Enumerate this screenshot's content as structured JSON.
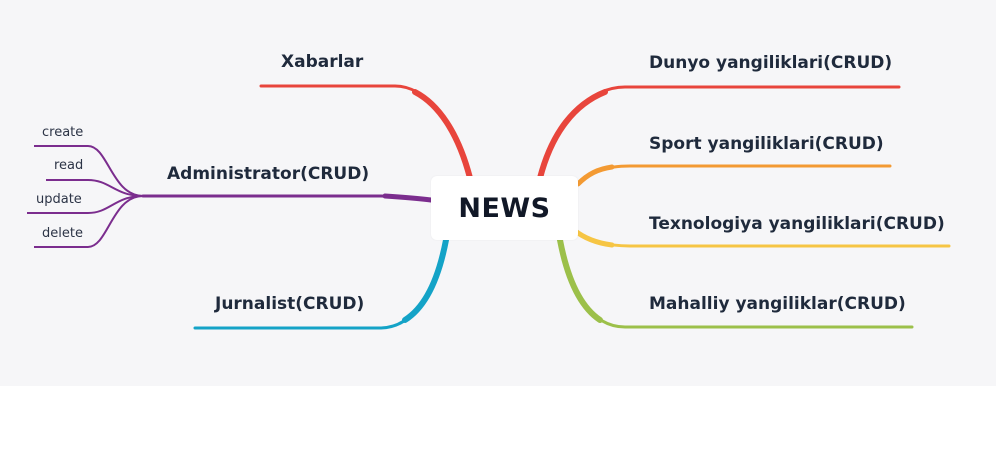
{
  "mindmap": {
    "center": "NEWS",
    "branches": {
      "xabarlar": "Xabarlar",
      "administrator": "Administrator(CRUD)",
      "jurnalist": "Jurnalist(CRUD)",
      "dunyo": "Dunyo yangiliklari(CRUD)",
      "sport": "Sport yangiliklari(CRUD)",
      "texnologiya": "Texnologiya yangiliklari(CRUD)",
      "mahalliy": "Mahalliy yangiliklar(CRUD)"
    },
    "admin_children": [
      "create",
      "read",
      "update",
      "delete"
    ]
  },
  "colors": {
    "canvas_bg": "#f6f6f8",
    "red": "#e8453c",
    "purple": "#7b2d8e",
    "blue": "#14a3c7",
    "orange": "#f39a33",
    "yellow": "#f6c544",
    "green": "#9cc04a"
  }
}
